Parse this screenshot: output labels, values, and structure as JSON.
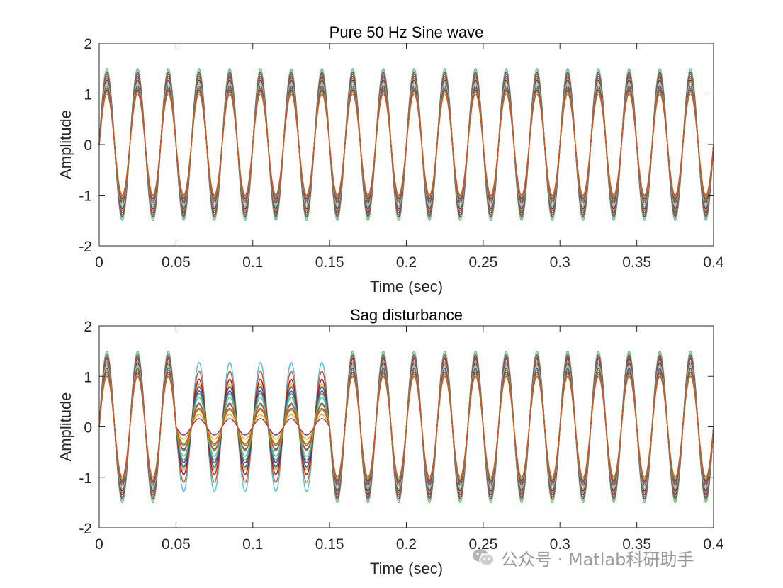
{
  "chart_data": [
    {
      "type": "line",
      "title": "Pure 50 Hz Sine wave",
      "xlabel": "Time (sec)",
      "ylabel": "Amplitude",
      "xlim": [
        0,
        0.4
      ],
      "ylim": [
        -2,
        2
      ],
      "xticks": [
        0,
        0.05,
        0.1,
        0.15,
        0.2,
        0.25,
        0.3,
        0.35,
        0.4
      ],
      "xtick_labels": [
        "0",
        "0.05",
        "0.1",
        "0.15",
        "0.2",
        "0.25",
        "0.3",
        "0.35",
        "0.4"
      ],
      "yticks": [
        -2,
        -1,
        0,
        1,
        2
      ],
      "ytick_labels": [
        "-2",
        "-1",
        "0",
        "1",
        "2"
      ],
      "frequency_hz": 50,
      "amplitude_range": [
        1.0,
        1.5
      ],
      "num_series": 14,
      "series_colors": [
        "#4DBEEE",
        "#EDB120",
        "#0072BD",
        "#D95319",
        "#7E2F8E",
        "#77AC30",
        "#A2142F",
        "#4DBEEE",
        "#EDB120",
        "#0072BD",
        "#D95319",
        "#7E2F8E",
        "#77AC30",
        "#D95319"
      ]
    },
    {
      "type": "line",
      "title": "Sag disturbance",
      "xlabel": "Time (sec)",
      "ylabel": "Amplitude",
      "xlim": [
        0,
        0.4
      ],
      "ylim": [
        -2,
        2
      ],
      "xticks": [
        0,
        0.05,
        0.1,
        0.15,
        0.2,
        0.25,
        0.3,
        0.35,
        0.4
      ],
      "xtick_labels": [
        "0",
        "0.05",
        "0.1",
        "0.15",
        "0.2",
        "0.25",
        "0.3",
        "0.35",
        "0.4"
      ],
      "yticks": [
        -2,
        -1,
        0,
        1,
        2
      ],
      "ytick_labels": [
        "-2",
        "-1",
        "0",
        "1",
        "2"
      ],
      "frequency_hz": 50,
      "amplitude_range": [
        1.0,
        1.5
      ],
      "sag_interval": [
        0.05,
        0.15
      ],
      "sag_factor_range": [
        0.15,
        0.85
      ],
      "num_series": 14,
      "series_colors": [
        "#4DBEEE",
        "#EDB120",
        "#0072BD",
        "#D95319",
        "#7E2F8E",
        "#77AC30",
        "#A2142F",
        "#4DBEEE",
        "#EDB120",
        "#0072BD",
        "#D95319",
        "#7E2F8E",
        "#77AC30",
        "#D95319"
      ]
    }
  ],
  "watermark": {
    "text": "公众号 · Matlab科研助手",
    "icon": "wechat-icon"
  }
}
